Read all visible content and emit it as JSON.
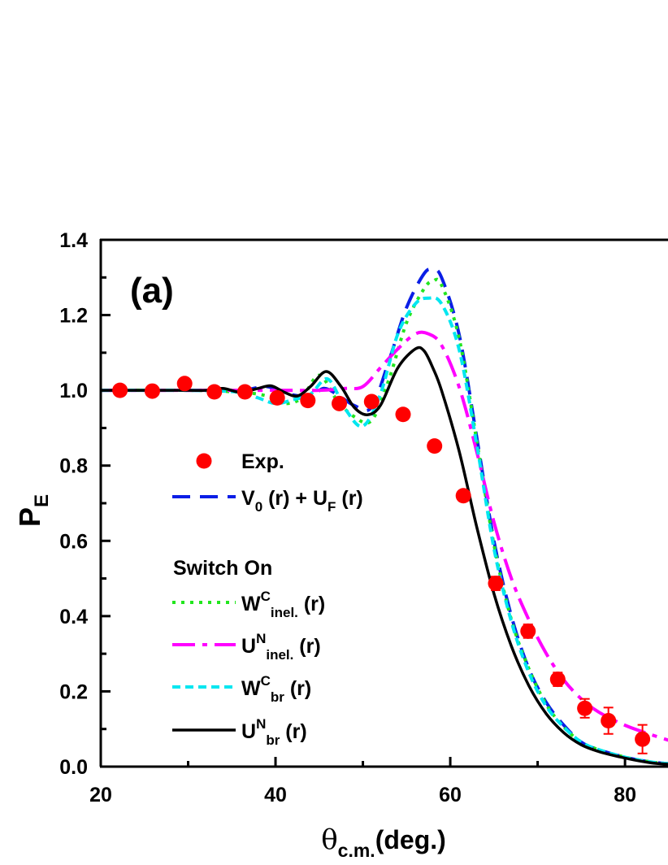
{
  "chart_data": {
    "type": "line",
    "panel_label": "(a)",
    "xlabel": {
      "main": "θ",
      "sub": "c.m.",
      "rest": "(deg.)"
    },
    "ylabel": {
      "main": "P",
      "sub": "E"
    },
    "xlim": [
      20,
      85
    ],
    "ylim": [
      0.0,
      1.4
    ],
    "xticks": [
      20,
      40,
      60,
      80
    ],
    "xtick_labels": [
      "20",
      "40",
      "60",
      "80"
    ],
    "yticks": [
      0.0,
      0.2,
      0.4,
      0.6,
      0.8,
      1.0,
      1.2,
      1.4
    ],
    "ytick_labels": [
      "0.0",
      "0.2",
      "0.4",
      "0.6",
      "0.8",
      "1.0",
      "1.2",
      "1.4"
    ],
    "legend_heading": "Switch On",
    "legend": {
      "exp": "Exp.",
      "v0uf": {
        "a": "V",
        "a_sub": "0",
        "b": " (r) + U",
        "b_sub": "F",
        "c": " (r)"
      },
      "wc_inel": {
        "a": "W",
        "sup": "C",
        "sub": "inel.",
        "c": " (r)"
      },
      "un_inel": {
        "a": "U",
        "sup": "N",
        "sub": "inel.",
        "c": " (r)"
      },
      "wc_br": {
        "a": "W",
        "sup": "C",
        "sub": "br",
        "c": " (r)"
      },
      "un_br": {
        "a": "U",
        "sup": "N",
        "sub": "br",
        "c": " (r)"
      }
    },
    "exp_points": {
      "color": "#ff0000",
      "x": [
        22.2,
        25.9,
        29.6,
        33.0,
        36.5,
        40.2,
        43.7,
        47.3,
        51.0,
        54.6,
        58.2,
        61.5,
        65.2,
        68.9,
        72.3,
        75.4,
        78.1,
        82.0
      ],
      "y": [
        1.0,
        0.998,
        1.018,
        0.996,
        0.996,
        0.98,
        0.973,
        0.965,
        0.97,
        0.936,
        0.852,
        0.72,
        0.487,
        0.36,
        0.232,
        0.155,
        0.122,
        0.073
      ],
      "err": [
        0,
        0,
        0,
        0,
        0,
        0,
        0,
        0,
        0,
        0,
        0,
        0,
        0.018,
        0.018,
        0.018,
        0.025,
        0.035,
        0.038
      ]
    },
    "series": [
      {
        "key": "v0uf",
        "color": "#0a1ee6",
        "dash": "22,12",
        "width": 4,
        "x": [
          20,
          30,
          36,
          39,
          41.5,
          44,
          45.5,
          47,
          49,
          51,
          53,
          55,
          57,
          58,
          59,
          61,
          63,
          65,
          67,
          69,
          71,
          73,
          75,
          77,
          80,
          83,
          85
        ],
        "y": [
          1.0,
          1.0,
          1.0,
          1.01,
          0.99,
          0.985,
          1.005,
          0.99,
          0.96,
          0.955,
          1.08,
          1.22,
          1.31,
          1.32,
          1.3,
          1.15,
          0.88,
          0.6,
          0.4,
          0.26,
          0.17,
          0.11,
          0.065,
          0.045,
          0.025,
          0.012,
          0.008
        ]
      },
      {
        "key": "wc_inel",
        "color": "#22e61e",
        "dash": "4,7",
        "width": 4,
        "x": [
          20,
          30,
          36,
          39,
          41,
          43,
          45,
          47,
          49,
          51,
          53,
          55,
          57,
          58,
          59,
          61,
          63,
          65,
          67,
          69,
          71,
          73,
          75,
          77,
          80,
          83,
          85
        ],
        "y": [
          1.0,
          1.0,
          0.995,
          0.985,
          0.965,
          0.98,
          1.04,
          0.975,
          0.93,
          0.92,
          1.03,
          1.18,
          1.27,
          1.29,
          1.28,
          1.14,
          0.87,
          0.59,
          0.39,
          0.26,
          0.165,
          0.105,
          0.065,
          0.045,
          0.025,
          0.012,
          0.008
        ]
      },
      {
        "key": "un_inel",
        "color": "#ff00ff",
        "dash": "28,9,6,9",
        "width": 4,
        "x": [
          20,
          30,
          40,
          45,
          48,
          50,
          52,
          54,
          56,
          57.5,
          59,
          61,
          63,
          65,
          67,
          69,
          71,
          73,
          75,
          77,
          80,
          83,
          85
        ],
        "y": [
          1.0,
          1.0,
          1.0,
          1.0,
          1.005,
          1.01,
          1.06,
          1.11,
          1.15,
          1.15,
          1.12,
          1.01,
          0.84,
          0.65,
          0.5,
          0.39,
          0.3,
          0.23,
          0.18,
          0.145,
          0.11,
          0.085,
          0.07
        ]
      },
      {
        "key": "wc_br",
        "color": "#00e6f0",
        "dash": "10,6",
        "width": 4,
        "x": [
          20,
          30,
          36,
          38,
          40,
          42,
          44,
          46,
          48,
          50,
          52,
          54,
          56,
          57.5,
          59,
          61,
          63,
          65,
          67,
          69,
          71,
          73,
          75,
          77,
          80,
          83,
          85
        ],
        "y": [
          1.0,
          1.0,
          0.995,
          0.98,
          0.965,
          0.975,
          0.99,
          1.03,
          0.95,
          0.905,
          0.99,
          1.15,
          1.23,
          1.245,
          1.23,
          1.11,
          0.86,
          0.58,
          0.385,
          0.25,
          0.16,
          0.105,
          0.065,
          0.045,
          0.025,
          0.012,
          0.008
        ]
      },
      {
        "key": "un_br",
        "color": "#000000",
        "dash": "",
        "width": 3.5,
        "x": [
          20,
          26,
          30,
          32,
          34,
          36,
          38,
          39.5,
          41,
          42.5,
          44,
          45.8,
          47.5,
          49,
          50.5,
          52,
          54,
          56,
          57,
          58,
          59,
          61,
          63,
          65,
          67,
          69,
          71,
          73,
          75,
          77,
          79,
          81,
          83,
          85
        ],
        "y": [
          1.0,
          1.0,
          1.0,
          1.0,
          1.005,
          0.995,
          1.005,
          1.012,
          0.995,
          0.985,
          1.01,
          1.05,
          1.01,
          0.955,
          0.935,
          0.96,
          1.06,
          1.11,
          1.105,
          1.06,
          1.0,
          0.84,
          0.64,
          0.46,
          0.32,
          0.215,
          0.14,
          0.09,
          0.058,
          0.04,
          0.028,
          0.018,
          0.01,
          0.006
        ]
      }
    ]
  }
}
